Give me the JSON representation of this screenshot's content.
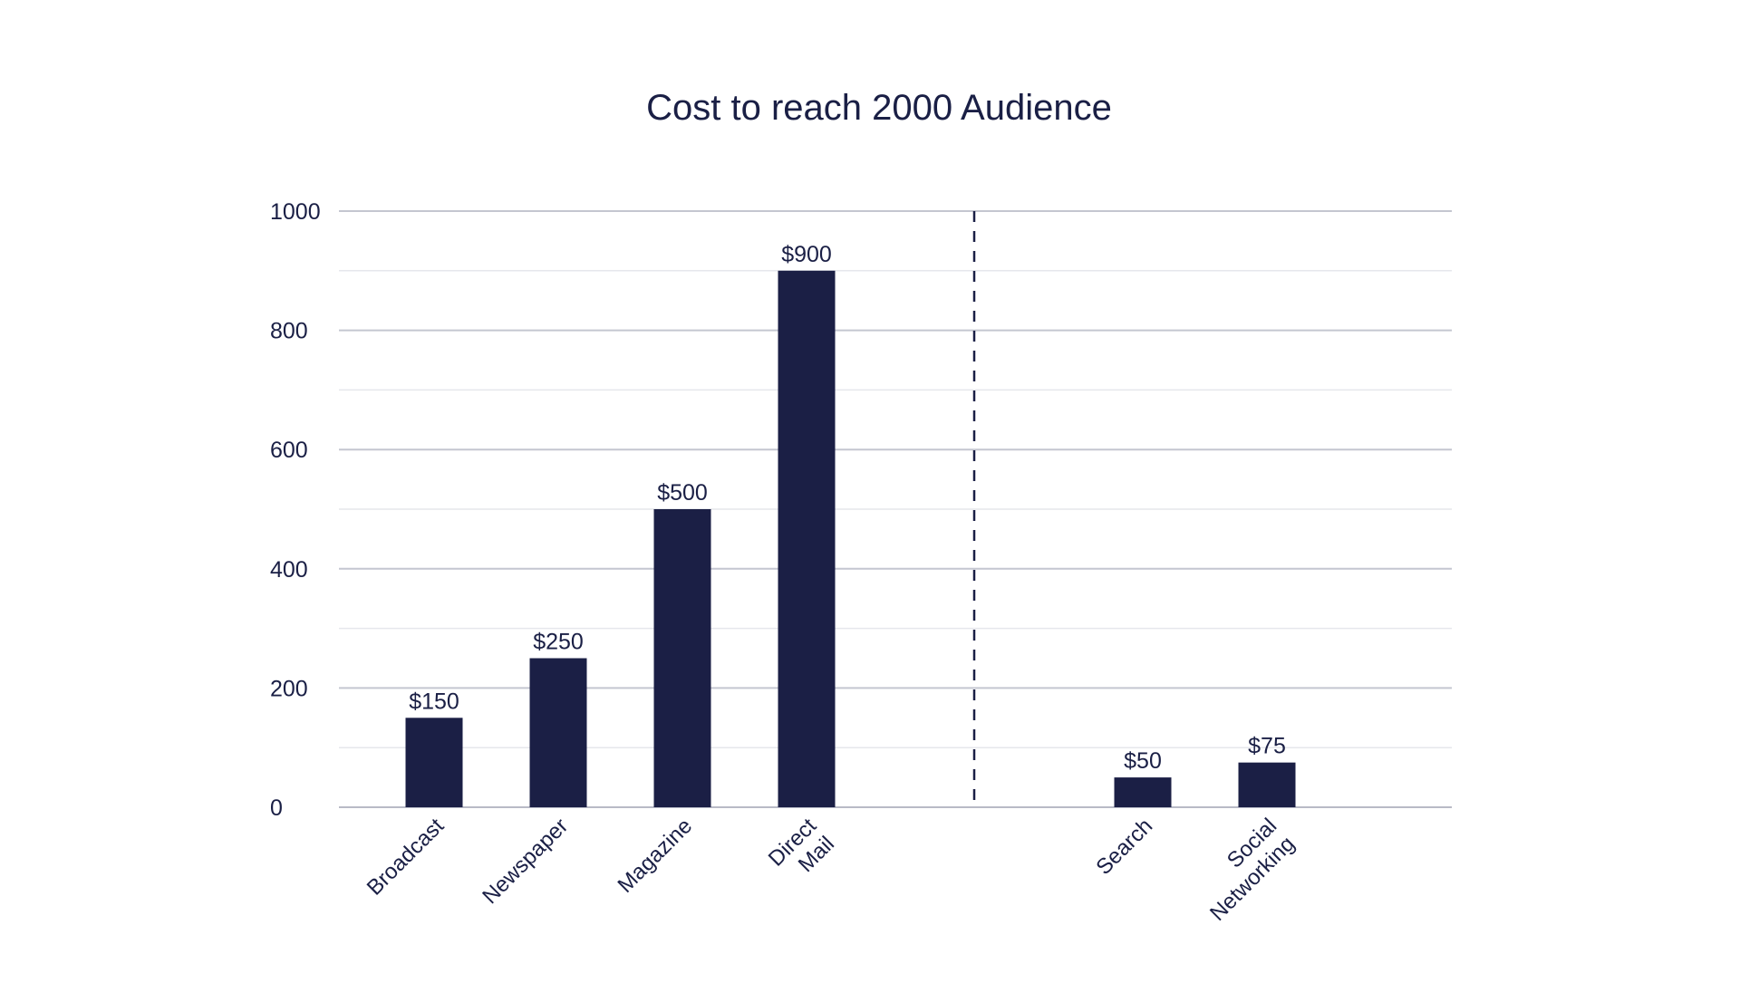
{
  "chart_data": {
    "type": "bar",
    "title": "Cost to reach 2000 Audience",
    "xlabel": "",
    "ylabel": "",
    "ylim": [
      0,
      1000
    ],
    "yticks": [
      0,
      200,
      400,
      600,
      800,
      1000
    ],
    "grid": true,
    "bar_color": "#1b1f45",
    "groups": [
      {
        "name": "traditional",
        "categories": [
          "Broadcast",
          "Newspaper",
          "Magazine",
          "Direct Mail"
        ],
        "values": [
          150,
          250,
          500,
          900
        ],
        "labels": [
          "$150",
          "$250",
          "$500",
          "$900"
        ]
      },
      {
        "name": "digital",
        "categories": [
          "Search",
          "Social Networking"
        ],
        "values": [
          50,
          75
        ],
        "labels": [
          "$50",
          "$75"
        ]
      }
    ]
  }
}
